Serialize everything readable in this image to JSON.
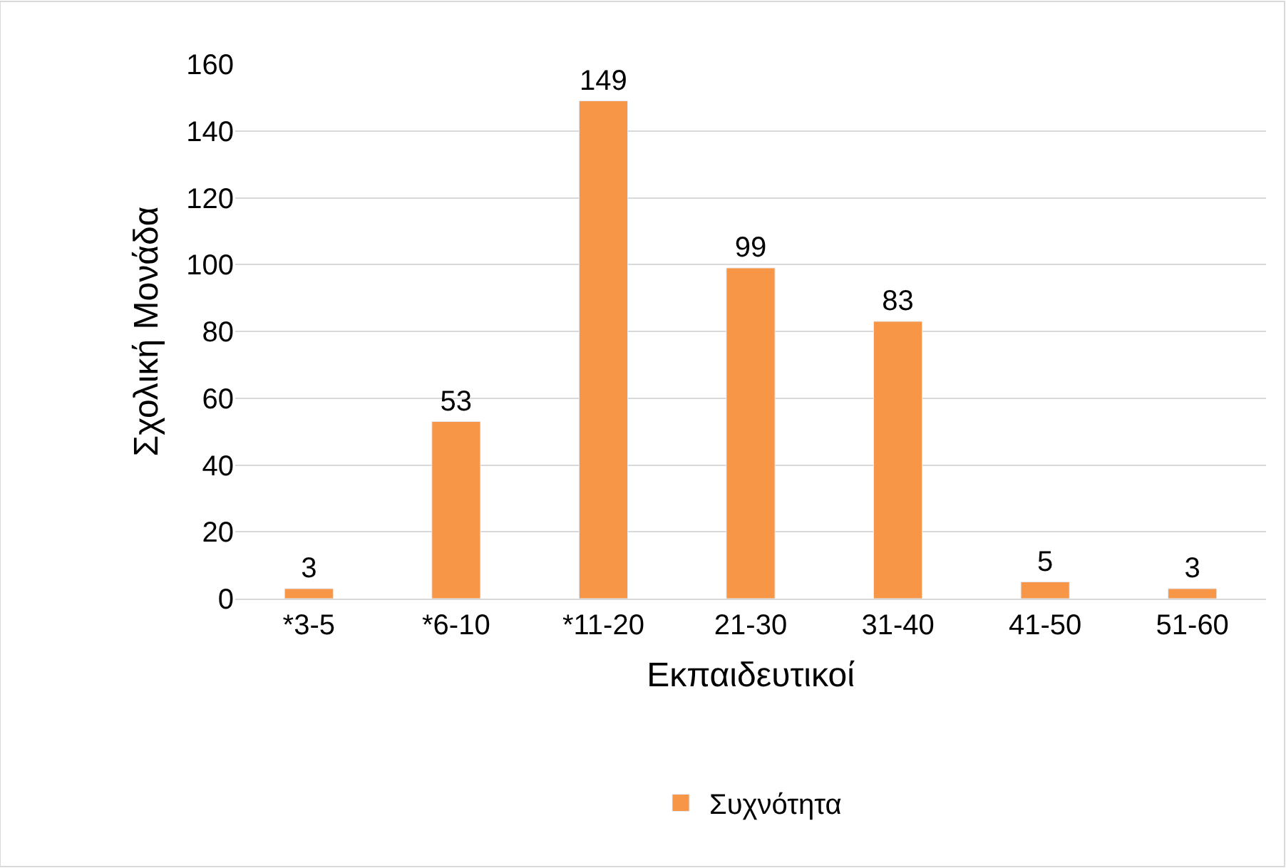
{
  "chart_data": {
    "type": "bar",
    "xlabel": "Εκπαιδευτικοί",
    "ylabel": "Σχολική Μονάδα",
    "categories": [
      "*3-5",
      "*6-10",
      "*11-20",
      "21-30",
      "31-40",
      "41-50",
      "51-60"
    ],
    "series": [
      {
        "name": "Συχνότητα",
        "color": "#f79646",
        "values": [
          3,
          53,
          149,
          99,
          83,
          5,
          3
        ]
      }
    ],
    "ylim": [
      0,
      160
    ],
    "yticks": [
      0,
      20,
      40,
      60,
      80,
      100,
      120,
      140,
      160
    ],
    "grid": "y",
    "legend": "bottom",
    "data_labels": true
  }
}
